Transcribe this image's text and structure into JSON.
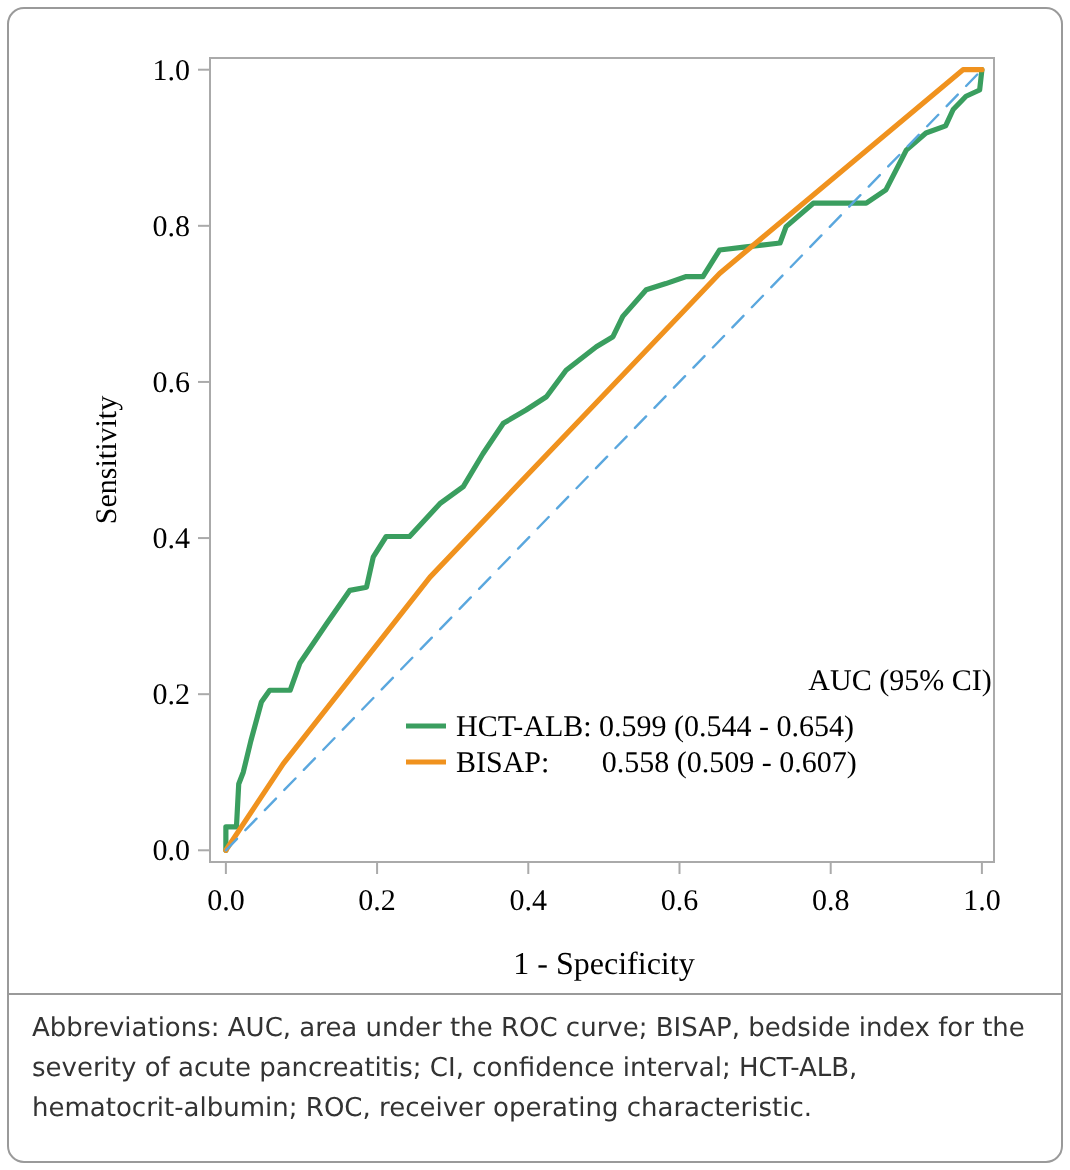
{
  "chart_data": {
    "type": "line",
    "xlabel": "1 - Specificity",
    "ylabel": "Sensitivity",
    "legend_title": "AUC (95% CI)",
    "legend": "bottom right",
    "grid": false,
    "line_style": "solid",
    "marker": "none",
    "xlim": [
      -0.021,
      1.016
    ],
    "ylim": [
      -0.015,
      1.015
    ],
    "xticks": [
      {
        "value": 0,
        "label": "0.0"
      },
      {
        "value": 0.2,
        "label": "0.2"
      },
      {
        "value": 0.4,
        "label": "0.4"
      },
      {
        "value": 0.6,
        "label": "0.6"
      },
      {
        "value": 0.8,
        "label": "0.8"
      },
      {
        "value": 1,
        "label": "1.0"
      }
    ],
    "yticks": [
      {
        "value": 0,
        "label": "0.0"
      },
      {
        "value": 0.2,
        "label": "0.2"
      },
      {
        "value": 0.4,
        "label": "0.4"
      },
      {
        "value": 0.6,
        "label": "0.6"
      },
      {
        "value": 0.8,
        "label": "0.8"
      },
      {
        "value": 1,
        "label": "1.0"
      }
    ],
    "series": [
      {
        "name": "HCT-ALB: 0.599 (0.544 - 0.654)",
        "color": "#3a9e5f",
        "x": [
          0,
          0,
          0.014,
          0.017,
          0.023,
          0.033,
          0.047,
          0.058,
          0.085,
          0.098,
          0.133,
          0.164,
          0.186,
          0.195,
          0.212,
          0.243,
          0.283,
          0.314,
          0.34,
          0.367,
          0.397,
          0.424,
          0.45,
          0.49,
          0.512,
          0.525,
          0.556,
          0.582,
          0.609,
          0.631,
          0.653,
          0.688,
          0.733,
          0.741,
          0.777,
          0.847,
          0.873,
          0.9,
          0.926,
          0.952,
          0.962,
          0.979,
          0.997,
          1
        ],
        "values": [
          0,
          0.03,
          0.03,
          0.085,
          0.1,
          0.14,
          0.19,
          0.205,
          0.205,
          0.24,
          0.29,
          0.333,
          0.337,
          0.376,
          0.402,
          0.402,
          0.444,
          0.466,
          0.508,
          0.547,
          0.564,
          0.581,
          0.615,
          0.645,
          0.658,
          0.684,
          0.718,
          0.726,
          0.735,
          0.735,
          0.769,
          0.773,
          0.778,
          0.799,
          0.829,
          0.829,
          0.846,
          0.897,
          0.919,
          0.928,
          0.949,
          0.966,
          0.974,
          1
        ]
      },
      {
        "name": "BISAP:       0.558 (0.509 - 0.607)",
        "color": "#f0921e",
        "x": [
          0,
          0.076,
          0.27,
          0.653,
          0.975,
          1
        ],
        "values": [
          0,
          0.111,
          0.35,
          0.739,
          1,
          1
        ]
      },
      {
        "color": "#5aa7de",
        "line_style": "dashed",
        "x": [
          0,
          1
        ],
        "values": [
          0,
          1
        ]
      }
    ],
    "annotations": [
      "Abbreviations: AUC, area under the ROC curve; BISAP, bedside index for the severity of acute pancreatitis; CI, confidence interval; HCT-ALB, hematocrit-albumin; ROC, receiver operating characteristic."
    ]
  }
}
